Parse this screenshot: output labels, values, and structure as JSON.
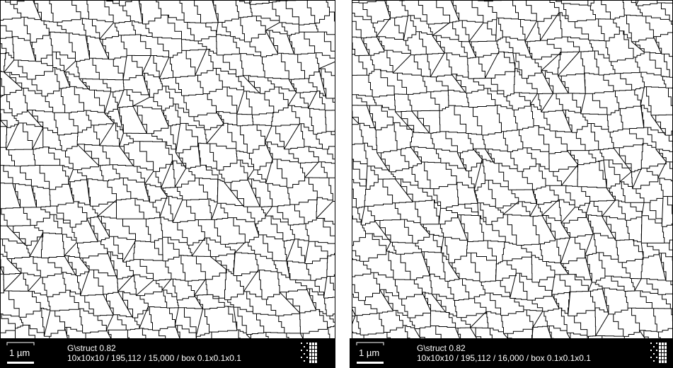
{
  "panels": [
    {
      "scale_label": "1 µm",
      "title": "G\\struct 0.82",
      "info": "10x10x10 / 195,112 / 15,000 / box 0.1x0.1x0.1"
    },
    {
      "scale_label": "1 µm",
      "title": "G\\struct 0.82",
      "info": "10x10x10 / 195,112 / 16,000 / box 0.1x0.1x0.1"
    }
  ]
}
